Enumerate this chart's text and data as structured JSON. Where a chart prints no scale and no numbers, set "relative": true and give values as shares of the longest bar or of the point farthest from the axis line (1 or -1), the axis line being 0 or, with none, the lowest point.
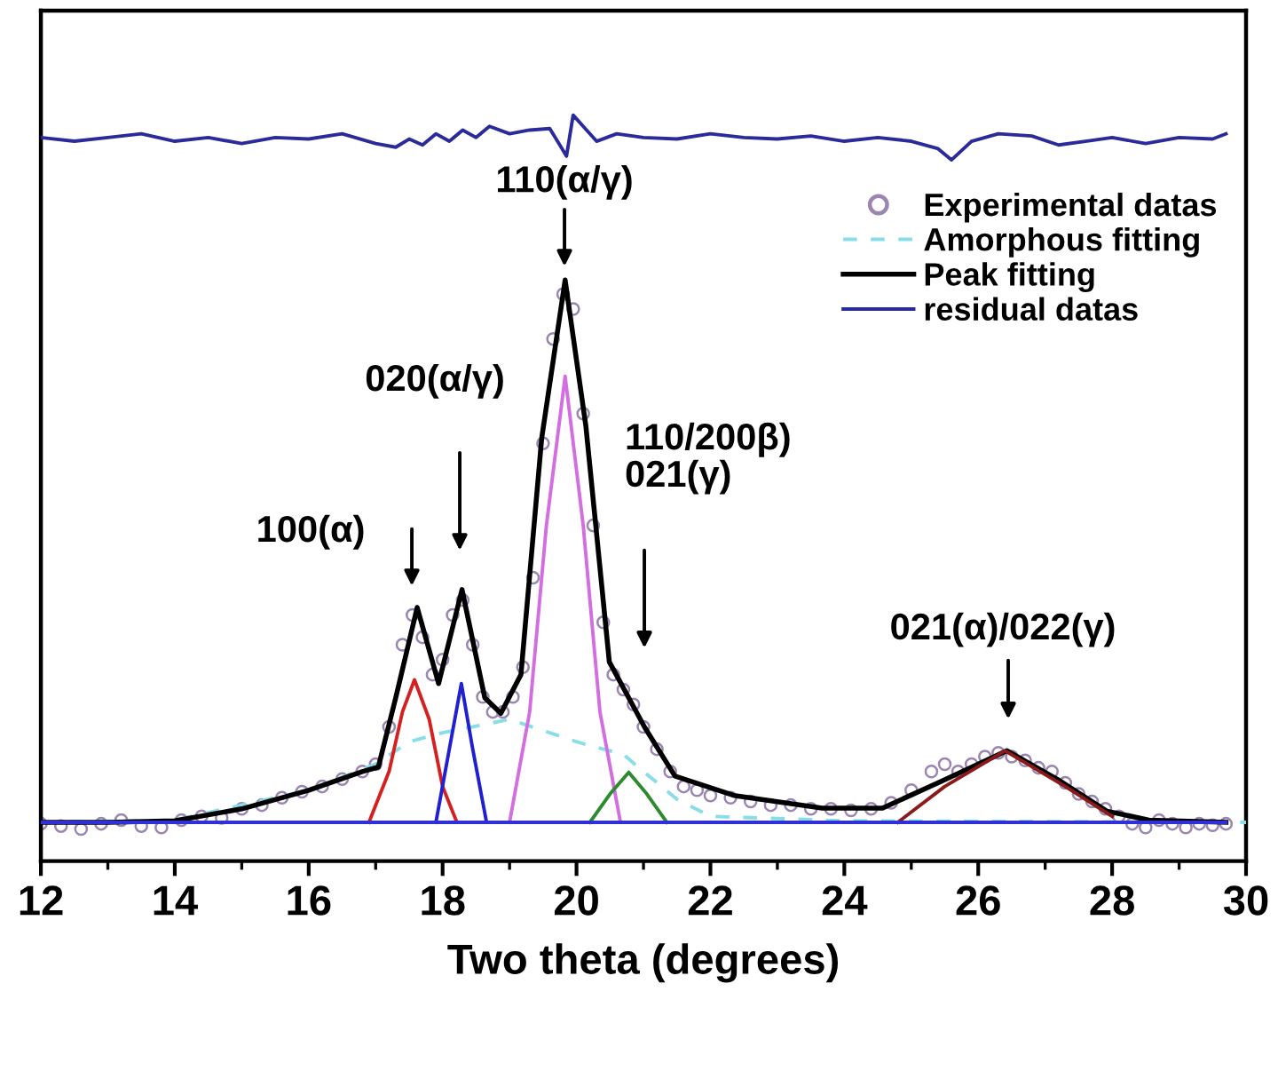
{
  "chart_data": {
    "type": "line",
    "relative": true,
    "xlabel": "Two theta (degrees)",
    "xlim": [
      12,
      30
    ],
    "xticks": [
      12,
      {
        "value": 13,
        "label": null
      },
      14,
      {
        "value": 15,
        "label": null
      },
      16,
      {
        "value": 17,
        "label": null
      },
      18,
      {
        "value": 19,
        "label": null
      },
      20,
      {
        "value": 21,
        "label": null
      },
      22,
      {
        "value": 23,
        "label": null
      },
      24,
      {
        "value": 25,
        "label": null
      },
      26,
      {
        "value": 27,
        "label": null
      },
      28,
      {
        "value": 29,
        "label": null
      },
      30
    ],
    "tick_labels": "x",
    "grid": false,
    "legend": "top right",
    "series": [
      {
        "name": "Experimental datas",
        "type": "scatter",
        "marker": "circle",
        "color": "#9a86b0",
        "x": [
          12.0,
          12.3,
          12.6,
          12.9,
          13.2,
          13.5,
          13.8,
          14.1,
          14.4,
          14.7,
          15.0,
          15.3,
          15.6,
          15.9,
          16.2,
          16.5,
          16.8,
          17.0,
          17.2,
          17.4,
          17.55,
          17.7,
          17.85,
          18.0,
          18.15,
          18.3,
          18.45,
          18.6,
          18.75,
          18.9,
          19.05,
          19.2,
          19.35,
          19.5,
          19.65,
          19.8,
          19.95,
          20.1,
          20.25,
          20.4,
          20.55,
          20.7,
          20.85,
          21.0,
          21.2,
          21.4,
          21.6,
          21.8,
          22.0,
          22.3,
          22.6,
          22.9,
          23.2,
          23.5,
          23.8,
          24.1,
          24.4,
          24.7,
          25.0,
          25.3,
          25.5,
          25.7,
          25.9,
          26.1,
          26.3,
          26.5,
          26.7,
          26.9,
          27.1,
          27.3,
          27.5,
          27.7,
          27.9,
          28.1,
          28.3,
          28.5,
          28.7,
          28.9,
          29.1,
          29.3,
          29.5,
          29.7
        ],
        "values": [
          0.05,
          0.047,
          0.043,
          0.05,
          0.055,
          0.047,
          0.045,
          0.055,
          0.06,
          0.058,
          0.07,
          0.075,
          0.085,
          0.093,
          0.1,
          0.11,
          0.12,
          0.13,
          0.18,
          0.29,
          0.33,
          0.3,
          0.25,
          0.27,
          0.33,
          0.35,
          0.29,
          0.22,
          0.2,
          0.2,
          0.22,
          0.26,
          0.38,
          0.56,
          0.7,
          0.76,
          0.74,
          0.6,
          0.45,
          0.32,
          0.25,
          0.23,
          0.21,
          0.18,
          0.15,
          0.12,
          0.1,
          0.095,
          0.088,
          0.085,
          0.08,
          0.075,
          0.075,
          0.07,
          0.07,
          0.068,
          0.07,
          0.078,
          0.095,
          0.12,
          0.13,
          0.12,
          0.13,
          0.14,
          0.145,
          0.14,
          0.135,
          0.125,
          0.12,
          0.105,
          0.09,
          0.08,
          0.07,
          0.06,
          0.05,
          0.045,
          0.055,
          0.05,
          0.045,
          0.05,
          0.048,
          0.05
        ]
      },
      {
        "name": "Amorphous fitting",
        "line_style": "dashed",
        "color": "#88dde6",
        "x": [
          12,
          14,
          16,
          17,
          17.5,
          18,
          19,
          20,
          20.4,
          20.7,
          21,
          21.5,
          22,
          24,
          30
        ],
        "values": [
          0.052,
          0.055,
          0.095,
          0.13,
          0.16,
          0.172,
          0.19,
          0.16,
          0.15,
          0.143,
          0.12,
          0.083,
          0.06,
          0.054,
          0.052
        ]
      },
      {
        "name": "Peak fitting",
        "color": "#000000",
        "x": [
          12,
          13,
          14,
          15,
          16,
          16.8,
          17.04,
          17.3,
          17.62,
          17.94,
          18.29,
          18.63,
          18.87,
          19.17,
          19.48,
          19.83,
          20.14,
          20.49,
          21.02,
          21.47,
          22.35,
          23.67,
          24.57,
          25.45,
          26.43,
          27.23,
          27.92,
          28.55,
          29.7
        ],
        "values": [
          0.052,
          0.052,
          0.054,
          0.07,
          0.095,
          0.12,
          0.126,
          0.219,
          0.34,
          0.238,
          0.364,
          0.219,
          0.198,
          0.25,
          0.567,
          0.779,
          0.583,
          0.267,
          0.179,
          0.114,
          0.088,
          0.071,
          0.071,
          0.107,
          0.148,
          0.107,
          0.067,
          0.055,
          0.052
        ]
      },
      {
        "name": "residual datas",
        "color": "#2a2a9a",
        "x": [
          12.0,
          12.5,
          13.0,
          13.5,
          14.0,
          14.5,
          15.0,
          15.5,
          16.0,
          16.5,
          17.0,
          17.3,
          17.5,
          17.7,
          17.9,
          18.1,
          18.3,
          18.5,
          18.7,
          19.0,
          19.3,
          19.6,
          19.75,
          19.85,
          19.95,
          20.1,
          20.3,
          20.6,
          21.0,
          21.5,
          22.0,
          22.5,
          23.0,
          23.5,
          24.0,
          24.5,
          25.0,
          25.4,
          25.6,
          25.9,
          26.3,
          26.8,
          27.2,
          27.6,
          28.0,
          28.5,
          29.0,
          29.5,
          29.7
        ],
        "values": [
          0.97,
          0.965,
          0.97,
          0.975,
          0.965,
          0.97,
          0.962,
          0.97,
          0.968,
          0.975,
          0.962,
          0.957,
          0.968,
          0.96,
          0.975,
          0.965,
          0.98,
          0.97,
          0.985,
          0.975,
          0.98,
          0.982,
          0.96,
          0.945,
          1.0,
          0.985,
          0.965,
          0.975,
          0.97,
          0.968,
          0.975,
          0.97,
          0.968,
          0.972,
          0.965,
          0.97,
          0.965,
          0.955,
          0.94,
          0.965,
          0.975,
          0.972,
          0.96,
          0.965,
          0.97,
          0.962,
          0.97,
          0.968,
          0.975
        ]
      },
      {
        "color": "#d42020",
        "x": [
          16.9,
          17.2,
          17.4,
          17.58,
          17.8,
          18.0,
          18.2
        ],
        "values": [
          0.052,
          0.12,
          0.2,
          0.243,
          0.19,
          0.1,
          0.055
        ]
      },
      {
        "color": "#2020d0",
        "x": [
          17.9,
          18.1,
          18.28,
          18.45,
          18.65
        ],
        "values": [
          0.052,
          0.15,
          0.238,
          0.15,
          0.055
        ]
      },
      {
        "color": "#d36ee0",
        "x": [
          19.0,
          19.3,
          19.55,
          19.83,
          20.1,
          20.35,
          20.65
        ],
        "values": [
          0.052,
          0.2,
          0.45,
          0.65,
          0.45,
          0.2,
          0.055
        ]
      },
      {
        "color": "#2e8a2e",
        "x": [
          20.2,
          20.5,
          20.78,
          21.05,
          21.35
        ],
        "values": [
          0.052,
          0.09,
          0.119,
          0.09,
          0.052
        ]
      },
      {
        "color": "#8b1a1a",
        "x": [
          24.8,
          25.5,
          26.4,
          27.3,
          28.0
        ],
        "values": [
          0.052,
          0.1,
          0.148,
          0.1,
          0.06
        ]
      },
      {
        "color": "#3030d8",
        "x": [
          12,
          29.7
        ],
        "values": [
          0.052,
          0.052
        ]
      }
    ],
    "annotations": [
      "100(α)",
      "020(α/γ)",
      "110(α/γ)",
      "110/200β)\n021(γ)",
      "021(α)/022(γ)"
    ]
  }
}
